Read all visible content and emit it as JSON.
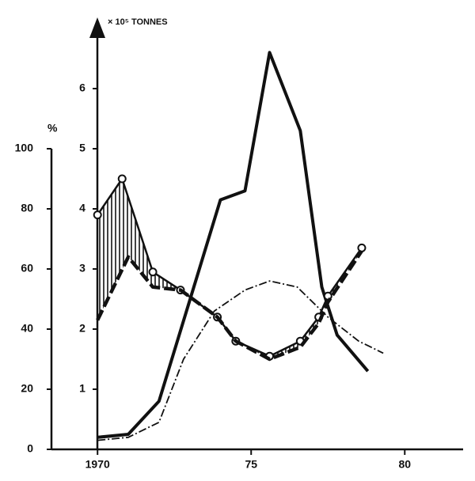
{
  "chart_data": {
    "type": "line",
    "ylabel": "%",
    "y2label": "× 10⁵ TONNES",
    "xlim": [
      1968.5,
      1981.9
    ],
    "xticks": [
      {
        "value": 1970,
        "label": "1970"
      },
      {
        "value": 1975,
        "label": "75"
      },
      {
        "value": 1980,
        "label": "80"
      }
    ],
    "ylim": [
      0,
      100
    ],
    "yticks": [
      0,
      20,
      40,
      60,
      80,
      100
    ],
    "y2lim": [
      0,
      7
    ],
    "y2ticks": [
      1,
      2,
      3,
      4,
      5,
      6
    ],
    "series": [
      {
        "color": "#111",
        "style": "solid-thick",
        "axis": "y2",
        "x": [
          1970,
          1971,
          1972,
          1974,
          1974.8,
          1975.6,
          1976.6,
          1977.3,
          1977.8,
          1978.8
        ],
        "values": [
          0.2,
          0.25,
          0.8,
          4.15,
          4.3,
          6.6,
          5.3,
          2.7,
          1.9,
          1.3
        ]
      },
      {
        "color": "#111",
        "style": "solid-markers",
        "x": [
          1970,
          1970.8,
          1971.8,
          1972.7,
          1973.9,
          1974.5,
          1975.6,
          1976.6,
          1977.2,
          1977.5,
          1978.6
        ],
        "values": [
          78,
          90,
          59,
          53,
          44,
          36,
          31,
          36,
          44,
          51,
          67
        ]
      },
      {
        "color": "#111",
        "style": "dashed-thick",
        "x": [
          1970,
          1971,
          1971.8,
          1972.7,
          1973.9,
          1974.5,
          1975.6,
          1976.6,
          1977.2,
          1977.5,
          1978.6
        ],
        "values": [
          43,
          64,
          54,
          53,
          44,
          36,
          30,
          34,
          42,
          49,
          66
        ]
      },
      {
        "color": "#111",
        "style": "dash-dot",
        "axis": "y2",
        "x": [
          1970,
          1971,
          1972,
          1972.8,
          1973.8,
          1974.8,
          1975.6,
          1976.5,
          1977.5,
          1978.5,
          1979.3
        ],
        "values": [
          0.15,
          0.2,
          0.45,
          1.5,
          2.3,
          2.65,
          2.8,
          2.7,
          2.2,
          1.8,
          1.6
        ]
      }
    ]
  }
}
